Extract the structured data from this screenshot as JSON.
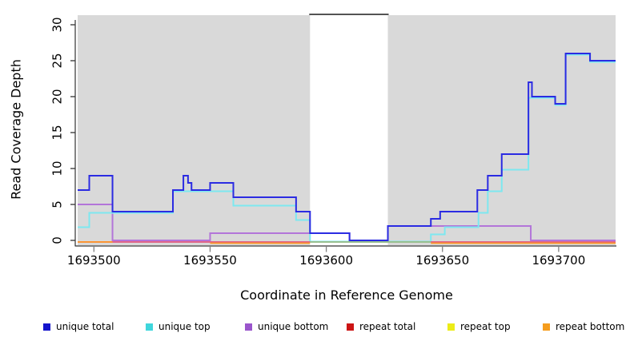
{
  "style": {
    "plot_bg_gray": "#d9d9d9",
    "gap_top_border": "#1a1a1a",
    "axis_line": "#333333",
    "x_tick_color": "#808080",
    "y_tick_color": "#333333",
    "text_color": "#000000"
  },
  "axes": {
    "xlabel": "Coordinate in Reference Genome",
    "ylabel": "Read Coverage Depth"
  },
  "legend": {
    "items": [
      {
        "label": "unique total",
        "color": "#1414cc"
      },
      {
        "label": "unique top",
        "color": "#3fd6dc"
      },
      {
        "label": "unique bottom",
        "color": "#9a55cc"
      },
      {
        "label": "repeat total",
        "color": "#cc1414"
      },
      {
        "label": "repeat top",
        "color": "#ecec17"
      },
      {
        "label": "repeat bottom",
        "color": "#f59d1e"
      }
    ]
  },
  "chart_data": {
    "type": "line",
    "step": true,
    "title": "",
    "xlabel": "Coordinate in Reference Genome",
    "ylabel": "Read Coverage Depth",
    "xlim": [
      1693493,
      1693724.5
    ],
    "ylim": [
      0,
      31.5
    ],
    "xticks": [
      1693500,
      1693550,
      1693600,
      1693650,
      1693700
    ],
    "yticks": [
      0,
      5,
      10,
      15,
      20,
      25,
      30
    ],
    "grid": false,
    "legend_position": "bottom",
    "shaded_regions": [
      {
        "from": 1693493,
        "to": 1693593
      },
      {
        "from": 1693626.5,
        "to": 1693724.5
      }
    ],
    "gap_region": {
      "from": 1693593,
      "to": 1693626.5
    },
    "series": [
      {
        "name": "unique bottom",
        "color": "#b375d9",
        "steps": [
          [
            1693493,
            5
          ],
          [
            1693508,
            0
          ],
          [
            1693550,
            1
          ],
          [
            1693610,
            0
          ],
          [
            1693626.5,
            2
          ],
          [
            1693688,
            0
          ]
        ]
      },
      {
        "name": "unique top",
        "color": "#7de8f0",
        "steps": [
          [
            1693493,
            2
          ],
          [
            1693498,
            4
          ],
          [
            1693534,
            7
          ],
          [
            1693560,
            5
          ],
          [
            1693587,
            3
          ],
          [
            1693593,
            0
          ],
          [
            1693645,
            1
          ],
          [
            1693651,
            2
          ],
          [
            1693665.5,
            4
          ],
          [
            1693669.5,
            7
          ],
          [
            1693675.5,
            10
          ],
          [
            1693687,
            20
          ],
          [
            1693698.5,
            19
          ],
          [
            1693703,
            26
          ],
          [
            1693713.5,
            25
          ]
        ]
      },
      {
        "name": "unique total",
        "color": "#2b2be2",
        "steps": [
          [
            1693493,
            7
          ],
          [
            1693498,
            9
          ],
          [
            1693508,
            4
          ],
          [
            1693534,
            7
          ],
          [
            1693538.5,
            9
          ],
          [
            1693540.5,
            8
          ],
          [
            1693542,
            7
          ],
          [
            1693550,
            8
          ],
          [
            1693560,
            6
          ],
          [
            1693587,
            4
          ],
          [
            1693593,
            1
          ],
          [
            1693610,
            0
          ],
          [
            1693626.5,
            2
          ],
          [
            1693645,
            3
          ],
          [
            1693649,
            4
          ],
          [
            1693665,
            7
          ],
          [
            1693669.5,
            9
          ],
          [
            1693675.5,
            12
          ],
          [
            1693687,
            22
          ],
          [
            1693688.5,
            20
          ],
          [
            1693698.5,
            19
          ],
          [
            1693703,
            26
          ],
          [
            1693713.5,
            25
          ]
        ]
      },
      {
        "name": "repeat total",
        "color": "#e0557f",
        "steps": [
          [
            1693493,
            0
          ]
        ]
      },
      {
        "name": "repeat top",
        "color": "#8fca8f",
        "steps": [
          [
            1693493,
            0
          ]
        ]
      },
      {
        "name": "repeat bottom",
        "color": "#ff9a26",
        "steps": [
          [
            1693493,
            0
          ]
        ]
      }
    ],
    "zero_line_visible_segments": [
      {
        "series": "repeat total",
        "from": 1693493,
        "to": 1693724.5
      },
      {
        "series": "repeat top",
        "from": 1693593,
        "to": 1693645
      },
      {
        "series": "repeat bottom",
        "from": 1693493,
        "to": 1693508
      },
      {
        "series": "repeat bottom",
        "from": 1693550,
        "to": 1693593
      },
      {
        "series": "repeat bottom",
        "from": 1693645,
        "to": 1693724.5
      }
    ]
  }
}
